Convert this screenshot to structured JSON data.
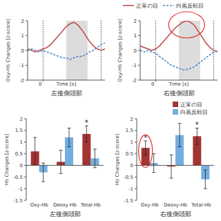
{
  "chart_data": [
    {
      "type": "line",
      "title": "左後側頭部",
      "x_label": "Time [s]",
      "y_label": "Oxy-Hb Changes [z-score]",
      "x": [
        -8,
        -6,
        -4,
        -2,
        0,
        2,
        4,
        6,
        8,
        10,
        12,
        14,
        16,
        18,
        20,
        22,
        24,
        26,
        28,
        30,
        32
      ],
      "xlim": [
        -8,
        32
      ],
      "xticks": [
        0
      ],
      "ylim": [
        -2,
        2
      ],
      "yticks": [
        -2,
        -1,
        0,
        1,
        2
      ],
      "shaded_range": [
        12,
        23
      ],
      "vlines": [
        0,
        30
      ],
      "legend": "top-right",
      "series": [
        {
          "name": "正常の目",
          "color": "#c0504d",
          "line_style": "solid",
          "values": [
            0.1,
            0.0,
            -0.1,
            0.0,
            0.1,
            0.2,
            0.4,
            0.7,
            1.0,
            1.3,
            1.6,
            1.8,
            1.9,
            1.7,
            1.4,
            1.0,
            0.6,
            0.3,
            0.1,
            0.0,
            0.1
          ]
        },
        {
          "name": "白黒反転目",
          "color": "#4a86c8",
          "line_style": "dashed",
          "values": [
            0.0,
            0.1,
            0.0,
            -0.1,
            0.0,
            -0.1,
            -0.2,
            -0.3,
            -0.4,
            -0.5,
            -0.5,
            -0.6,
            -0.5,
            -0.4,
            -0.4,
            -0.3,
            -0.1,
            0.0,
            0.2,
            0.4,
            0.5
          ]
        }
      ]
    },
    {
      "type": "line",
      "title": "右後側頭部",
      "x_label": "Time [s]",
      "y_label": "Oxy-Hb Changes [z-score]",
      "x": [
        -8,
        -6,
        -4,
        -2,
        0,
        2,
        4,
        6,
        8,
        10,
        12,
        14,
        16,
        18,
        20,
        22,
        24,
        26,
        28,
        30,
        32
      ],
      "xlim": [
        -8,
        32
      ],
      "xticks": [
        0
      ],
      "ylim": [
        -2,
        2
      ],
      "yticks": [
        -2,
        -1,
        0,
        1,
        2
      ],
      "shaded_range": [
        12,
        23
      ],
      "vlines": [
        0,
        30
      ],
      "series": [
        {
          "color": "#c0504d",
          "line_style": "solid",
          "values": [
            0.3,
            0.2,
            0.1,
            0.0,
            0.1,
            0.3,
            0.6,
            0.9,
            1.2,
            1.5,
            1.7,
            1.9,
            2.0,
            1.9,
            1.7,
            1.3,
            0.9,
            0.5,
            0.2,
            0.0,
            -0.1
          ]
        },
        {
          "color": "#4a86c8",
          "line_style": "dashed",
          "values": [
            0.0,
            -0.1,
            0.0,
            -0.1,
            -0.2,
            -0.4,
            -0.6,
            -0.8,
            -1.0,
            -1.1,
            -1.2,
            -1.3,
            -1.3,
            -1.2,
            -1.1,
            -0.9,
            -0.7,
            -0.5,
            -0.3,
            -0.1,
            0.0
          ]
        }
      ]
    },
    {
      "type": "bar",
      "title": "左後側頭部",
      "y_label": "Hb Changes [z-score]",
      "categories": [
        "Oxy-Hb",
        "Deoxy-Hb",
        "Total-Hb"
      ],
      "ylim": [
        -1.5,
        2
      ],
      "yticks": [
        -1.5,
        -1,
        -0.5,
        0,
        0.5,
        1,
        1.5,
        2
      ],
      "legend": "top-right",
      "series": [
        {
          "name": "正常の目",
          "color": "#a33434",
          "values": [
            0.6,
            0.15,
            1.35
          ],
          "errors": [
            0.6,
            0.5,
            0.35
          ]
        },
        {
          "name": "白黒反転目",
          "color": "#74aee0",
          "values": [
            -0.3,
            1.2,
            0.3
          ],
          "errors": [
            0.4,
            0.4,
            0.4
          ]
        }
      ],
      "annotations": [
        {
          "text": "*",
          "series": 0,
          "category": 2
        }
      ]
    },
    {
      "type": "bar",
      "title": "右後側頭部",
      "y_label": "Hb Changes [z-score]",
      "categories": [
        "Oxy-Hb",
        "Deoxy-Hb",
        "Total-Hb"
      ],
      "ylim": [
        -1.5,
        2
      ],
      "yticks": [
        -1.5,
        -1,
        -0.5,
        0,
        0.5,
        1,
        1.5,
        2
      ],
      "series": [
        {
          "color": "#a33434",
          "values": [
            0.75,
            -0.05,
            1.25
          ],
          "errors": [
            0.3,
            0.5,
            0.35
          ]
        },
        {
          "color": "#74aee0",
          "values": [
            0.1,
            1.3,
            -0.6
          ],
          "errors": [
            0.4,
            0.5,
            0.4
          ]
        }
      ],
      "annotations": [
        {
          "text": "*",
          "series": 0,
          "category": 0
        },
        {
          "text": "*",
          "series": 0,
          "category": 2
        }
      ]
    }
  ]
}
